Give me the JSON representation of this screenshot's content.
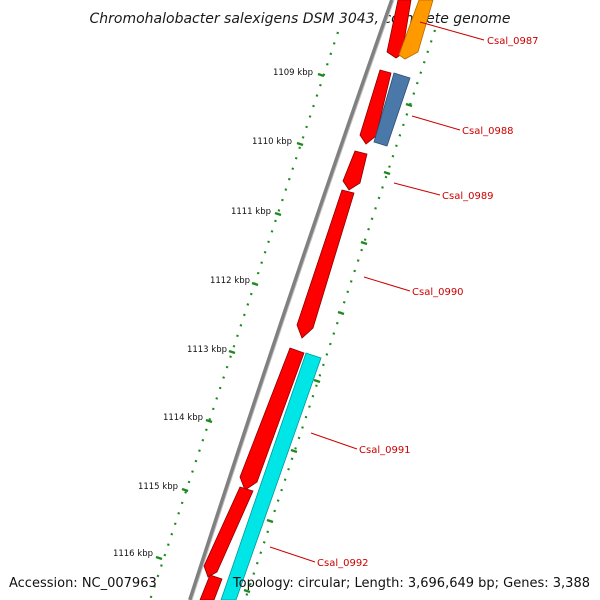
{
  "title": "Chromohalobacter salexigens DSM 3043, complete genome",
  "ticks": [
    "1109 kbp",
    "1110 kbp",
    "1111 kbp",
    "1112 kbp",
    "1113 kbp",
    "1114 kbp",
    "1115 kbp",
    "1116 kbp"
  ],
  "genes": [
    {
      "label": "Csal_0987"
    },
    {
      "label": "Csal_0988"
    },
    {
      "label": "Csal_0989"
    },
    {
      "label": "Csal_0990"
    },
    {
      "label": "Csal_0991"
    },
    {
      "label": "Csal_0992"
    }
  ],
  "footer": {
    "accession": "Accession: NC_007963",
    "summary": "Topology: circular; Length: 3,696,649 bp; Genes: 3,388"
  },
  "colors": {
    "forward_gene": "#ff0000",
    "reverse_gene_orange": "#ff9900",
    "reverse_gene_blue": "#4a78a8",
    "reverse_gene_cyan": "#00e5e5",
    "backbone": "#808080",
    "tick": "#1f8a1f",
    "label": "#cc0000"
  }
}
